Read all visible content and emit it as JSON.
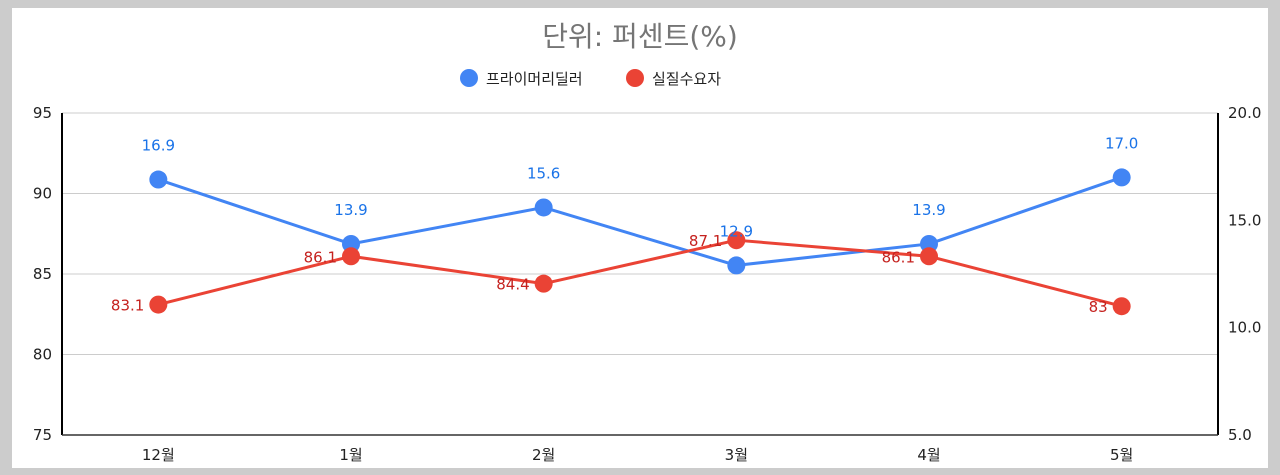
{
  "chart_data": {
    "type": "line",
    "title": "단위: 퍼센트(%)",
    "categories": [
      "12월",
      "1월",
      "2월",
      "3월",
      "4월",
      "5월"
    ],
    "series": [
      {
        "name": "프라이머리딜러",
        "axis": "right",
        "color": "#4285f4",
        "label_color": "#1a73e8",
        "values": [
          16.9,
          13.9,
          15.6,
          12.9,
          13.9,
          17.0
        ],
        "labels": [
          "16.9",
          "13.9",
          "15.6",
          "12.9",
          "13.9",
          "17.0"
        ]
      },
      {
        "name": "실질수요자",
        "axis": "left",
        "color": "#ea4335",
        "label_color": "#c5221f",
        "values": [
          83.1,
          86.1,
          84.4,
          87.1,
          86.1,
          83
        ],
        "labels": [
          "83.1",
          "86.1",
          "84.4",
          "87.1",
          "86.1",
          "83"
        ]
      }
    ],
    "y_left": {
      "min": 75,
      "max": 95,
      "ticks": [
        "75",
        "80",
        "85",
        "90",
        "95"
      ]
    },
    "y_right": {
      "min": 5,
      "max": 20,
      "ticks": [
        "5.0",
        "10.0",
        "15.0",
        "20.0"
      ]
    },
    "grid": true,
    "legend_position": "top"
  }
}
